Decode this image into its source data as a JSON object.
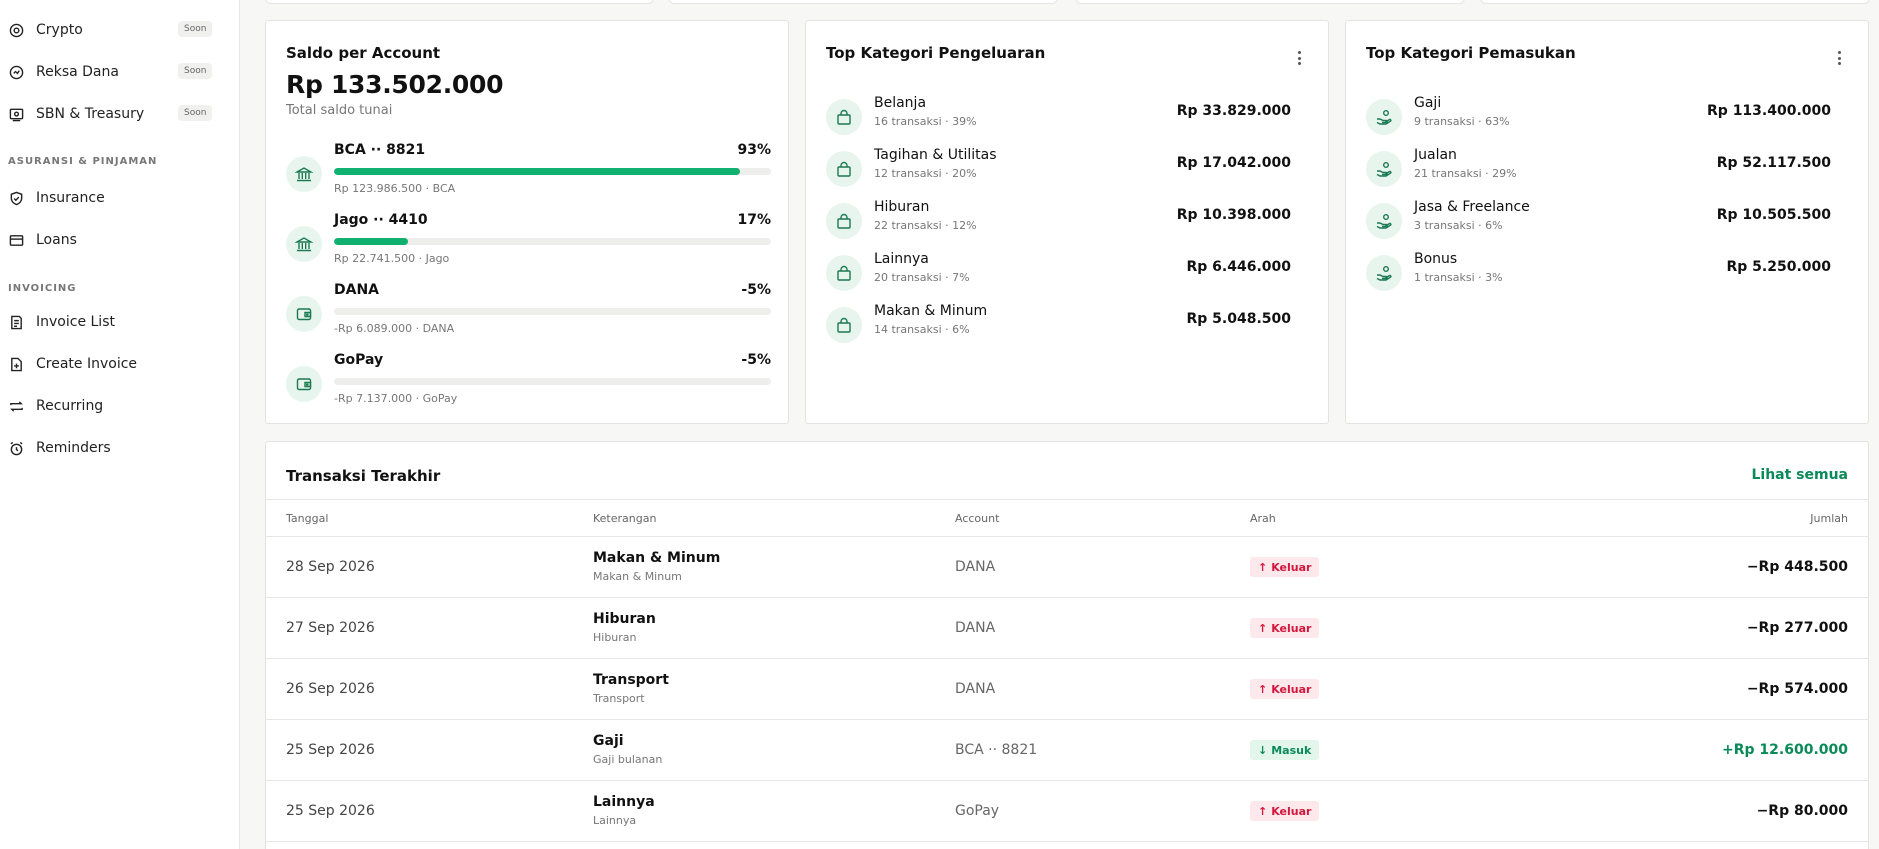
{
  "sidebar": {
    "items_top": [
      {
        "label": "Crypto",
        "badge": "Soon",
        "icon": "crypto-icon"
      },
      {
        "label": "Reksa Dana",
        "badge": "Soon",
        "icon": "fund-icon"
      },
      {
        "label": "SBN & Treasury",
        "badge": "Soon",
        "icon": "treasury-icon"
      }
    ],
    "section_insurance": "ASURANSI & PINJAMAN",
    "items_insurance": [
      {
        "label": "Insurance",
        "icon": "shield-icon"
      },
      {
        "label": "Loans",
        "icon": "card-icon"
      }
    ],
    "section_invoicing": "INVOICING",
    "items_invoicing": [
      {
        "label": "Invoice List",
        "icon": "list-icon"
      },
      {
        "label": "Create Invoice",
        "icon": "file-plus-icon"
      },
      {
        "label": "Recurring",
        "icon": "repeat-icon"
      },
      {
        "label": "Reminders",
        "icon": "alarm-icon"
      }
    ]
  },
  "saldo": {
    "title": "Saldo per Account",
    "total": "Rp 133.502.000",
    "subtitle": "Total saldo tunai",
    "accounts": [
      {
        "name": "BCA ·· 8821",
        "pct": "93%",
        "fill": 0.93,
        "sub": "Rp 123.986.500 · BCA",
        "icon": "bank-icon"
      },
      {
        "name": "Jago ·· 4410",
        "pct": "17%",
        "fill": 0.17,
        "sub": "Rp 22.741.500 · Jago",
        "icon": "bank-icon"
      },
      {
        "name": "DANA",
        "pct": "-5%",
        "fill": 0,
        "sub": "-Rp 6.089.000 · DANA",
        "icon": "wallet-icon"
      },
      {
        "name": "GoPay",
        "pct": "-5%",
        "fill": 0,
        "sub": "-Rp 7.137.000 · GoPay",
        "icon": "wallet-icon"
      }
    ]
  },
  "pengeluaran": {
    "title": "Top Kategori Pengeluaran",
    "items": [
      {
        "name": "Belanja",
        "sub": "16 transaksi · 39%",
        "amount": "Rp 33.829.000"
      },
      {
        "name": "Tagihan & Utilitas",
        "sub": "12 transaksi · 20%",
        "amount": "Rp 17.042.000"
      },
      {
        "name": "Hiburan",
        "sub": "22 transaksi · 12%",
        "amount": "Rp 10.398.000"
      },
      {
        "name": "Lainnya",
        "sub": "20 transaksi · 7%",
        "amount": "Rp 6.446.000"
      },
      {
        "name": "Makan & Minum",
        "sub": "14 transaksi · 6%",
        "amount": "Rp 5.048.500"
      }
    ]
  },
  "pemasukan": {
    "title": "Top Kategori Pemasukan",
    "items": [
      {
        "name": "Gaji",
        "sub": "9 transaksi · 63%",
        "amount": "Rp 113.400.000"
      },
      {
        "name": "Jualan",
        "sub": "21 transaksi · 29%",
        "amount": "Rp 52.117.500"
      },
      {
        "name": "Jasa & Freelance",
        "sub": "3 transaksi · 6%",
        "amount": "Rp 10.505.500"
      },
      {
        "name": "Bonus",
        "sub": "1 transaksi · 3%",
        "amount": "Rp 5.250.000"
      }
    ]
  },
  "transaksi": {
    "title": "Transaksi Terakhir",
    "link": "Lihat semua",
    "headers": {
      "date": "Tanggal",
      "desc": "Keterangan",
      "account": "Account",
      "direction": "Arah",
      "amount": "Jumlah"
    },
    "rows": [
      {
        "date": "28 Sep 2026",
        "desc": "Makan & Minum",
        "desc_sub": "Makan & Minum",
        "account": "DANA",
        "direction": "Keluar",
        "dir_type": "out",
        "amount": "−Rp 448.500"
      },
      {
        "date": "27 Sep 2026",
        "desc": "Hiburan",
        "desc_sub": "Hiburan",
        "account": "DANA",
        "direction": "Keluar",
        "dir_type": "out",
        "amount": "−Rp 277.000"
      },
      {
        "date": "26 Sep 2026",
        "desc": "Transport",
        "desc_sub": "Transport",
        "account": "DANA",
        "direction": "Keluar",
        "dir_type": "out",
        "amount": "−Rp 574.000"
      },
      {
        "date": "25 Sep 2026",
        "desc": "Gaji",
        "desc_sub": "Gaji bulanan",
        "account": "BCA ·· 8821",
        "direction": "Masuk",
        "dir_type": "in",
        "amount": "+Rp 12.600.000"
      },
      {
        "date": "25 Sep 2026",
        "desc": "Lainnya",
        "desc_sub": "Lainnya",
        "account": "GoPay",
        "direction": "Keluar",
        "dir_type": "out",
        "amount": "−Rp 80.000"
      }
    ]
  },
  "colors": {
    "accent": "#0a8a58",
    "bar": "#10b070",
    "out": "#d4183d",
    "icon_bg": "#e8f5ee"
  }
}
